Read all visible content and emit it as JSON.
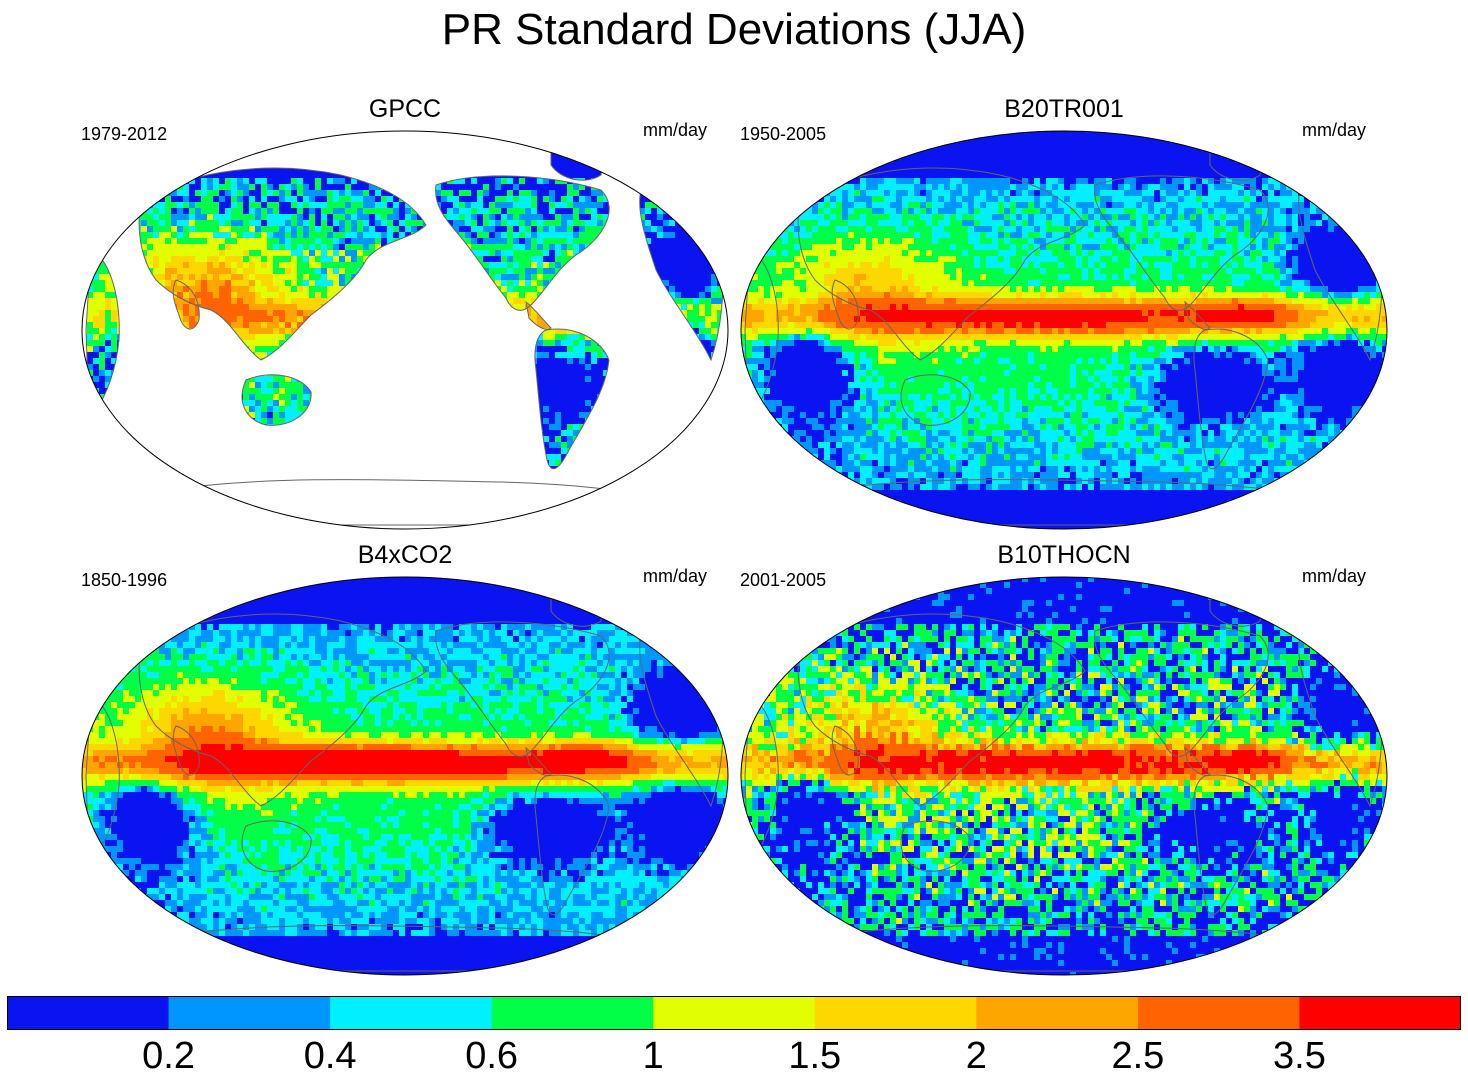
{
  "page_title": "PR Standard Deviations (JJA)",
  "chart_data": {
    "type": "heatmap",
    "title": "PR Standard Deviations (JJA)",
    "units": "mm/day",
    "projection": "global map (Pacific-centered)",
    "contour_levels": [
      0.2,
      0.4,
      0.6,
      1,
      1.5,
      2,
      2.5,
      3.5
    ],
    "colorbar_labels": [
      "0.2",
      "0.4",
      "0.6",
      "1",
      "1.5",
      "2",
      "2.5",
      "3.5"
    ],
    "colorbar_colors": [
      "#0a14f0",
      "#0096ff",
      "#00f0ff",
      "#00ff46",
      "#e1ff00",
      "#ffd700",
      "#ffa500",
      "#ff6400",
      "#ff0000"
    ],
    "panels": [
      {
        "title": "GPCC",
        "years": "1979-2012",
        "units": "mm/day",
        "coverage": "land only"
      },
      {
        "title": "B20TR001",
        "years": "1950-2005",
        "units": "mm/day",
        "coverage": "global"
      },
      {
        "title": "B4xCO2",
        "years": "1850-1996",
        "units": "mm/day",
        "coverage": "global"
      },
      {
        "title": "B10THOCN",
        "years": "2001-2005",
        "units": "mm/day",
        "coverage": "global"
      }
    ]
  }
}
